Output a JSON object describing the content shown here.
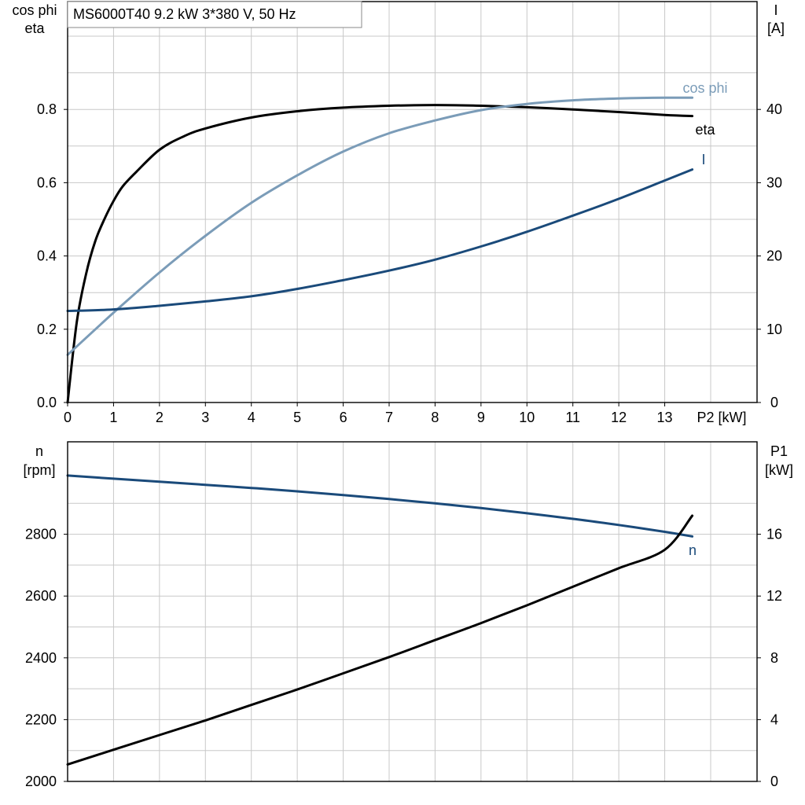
{
  "title": "MS6000T40   9.2 kW   3*380 V, 50 Hz",
  "colors": {
    "eta": "#000000",
    "cos_phi": "#7b9cb8",
    "current": "#1a4a7a",
    "speed": "#1a4a7a",
    "p1": "#000000",
    "grid": "#c8c8c8"
  },
  "chart_data": [
    {
      "type": "line",
      "title": "MS6000T40   9.2 kW   3*380 V, 50 Hz",
      "xlabel": "P2 [kW]",
      "xlim": [
        0,
        14
      ],
      "x_ticks": [
        0,
        1,
        2,
        3,
        4,
        5,
        6,
        7,
        8,
        9,
        10,
        11,
        12,
        13
      ],
      "ylabel_left": [
        "cos phi",
        "eta"
      ],
      "ylim_left": [
        0,
        1.0
      ],
      "y_ticks_left": [
        "0.0",
        "0.2",
        "0.4",
        "0.6",
        "0.8"
      ],
      "ylabel_right": [
        "I",
        "[A]"
      ],
      "ylim_right": [
        0,
        50
      ],
      "y_ticks_right": [
        "0",
        "10",
        "20",
        "30",
        "40"
      ],
      "grid": true,
      "series": [
        {
          "name": "eta",
          "axis": "left",
          "x": [
            0,
            0.2,
            0.4,
            0.6,
            0.8,
            1.0,
            1.2,
            1.5,
            2,
            2.5,
            3,
            4,
            5,
            6,
            7,
            8,
            9,
            10,
            11,
            12,
            13,
            13.6
          ],
          "y": [
            0.0,
            0.22,
            0.35,
            0.44,
            0.5,
            0.55,
            0.59,
            0.63,
            0.69,
            0.725,
            0.748,
            0.778,
            0.795,
            0.805,
            0.81,
            0.812,
            0.81,
            0.806,
            0.8,
            0.793,
            0.785,
            0.782
          ]
        },
        {
          "name": "cos phi",
          "axis": "left",
          "x": [
            0,
            1,
            2,
            3,
            4,
            5,
            6,
            7,
            8,
            9,
            10,
            11,
            12,
            13,
            13.6
          ],
          "y": [
            0.13,
            0.245,
            0.355,
            0.455,
            0.545,
            0.62,
            0.685,
            0.735,
            0.77,
            0.798,
            0.815,
            0.825,
            0.83,
            0.832,
            0.832
          ]
        },
        {
          "name": "I",
          "axis": "right",
          "x": [
            0,
            1,
            2,
            3,
            4,
            5,
            6,
            7,
            8,
            9,
            10,
            11,
            12,
            13,
            13.6
          ],
          "y": [
            12.5,
            12.7,
            13.2,
            13.8,
            14.5,
            15.5,
            16.7,
            18,
            19.5,
            21.3,
            23.3,
            25.5,
            27.8,
            30.3,
            31.8
          ]
        }
      ]
    },
    {
      "type": "line",
      "xlim": [
        0,
        14
      ],
      "ylabel_left": [
        "n",
        "[rpm]"
      ],
      "ylim_left": [
        2000,
        3000
      ],
      "y_ticks_left": [
        "2000",
        "2200",
        "2400",
        "2600",
        "2800"
      ],
      "ylabel_right": [
        "P1",
        "[kW]"
      ],
      "ylim_right": [
        0,
        20
      ],
      "y_ticks_right": [
        "0",
        "4",
        "8",
        "12",
        "16"
      ],
      "grid": true,
      "series": [
        {
          "name": "n",
          "axis": "left",
          "x": [
            0,
            1,
            2,
            3,
            4,
            5,
            6,
            7,
            8,
            9,
            10,
            11,
            12,
            13,
            13.6
          ],
          "y": [
            2990,
            2980,
            2970,
            2960,
            2950,
            2939,
            2927,
            2914,
            2900,
            2885,
            2868,
            2850,
            2830,
            2808,
            2793
          ]
        },
        {
          "name": "",
          "axis": "right",
          "x": [
            0,
            1,
            2,
            3,
            4,
            5,
            6,
            7,
            8,
            9,
            10,
            11,
            12,
            13,
            13.6
          ],
          "y": [
            1.1,
            2.05,
            3.0,
            3.95,
            4.95,
            5.95,
            7.0,
            8.05,
            9.15,
            10.25,
            11.4,
            12.6,
            13.8,
            15.0,
            17.2
          ]
        }
      ]
    }
  ]
}
